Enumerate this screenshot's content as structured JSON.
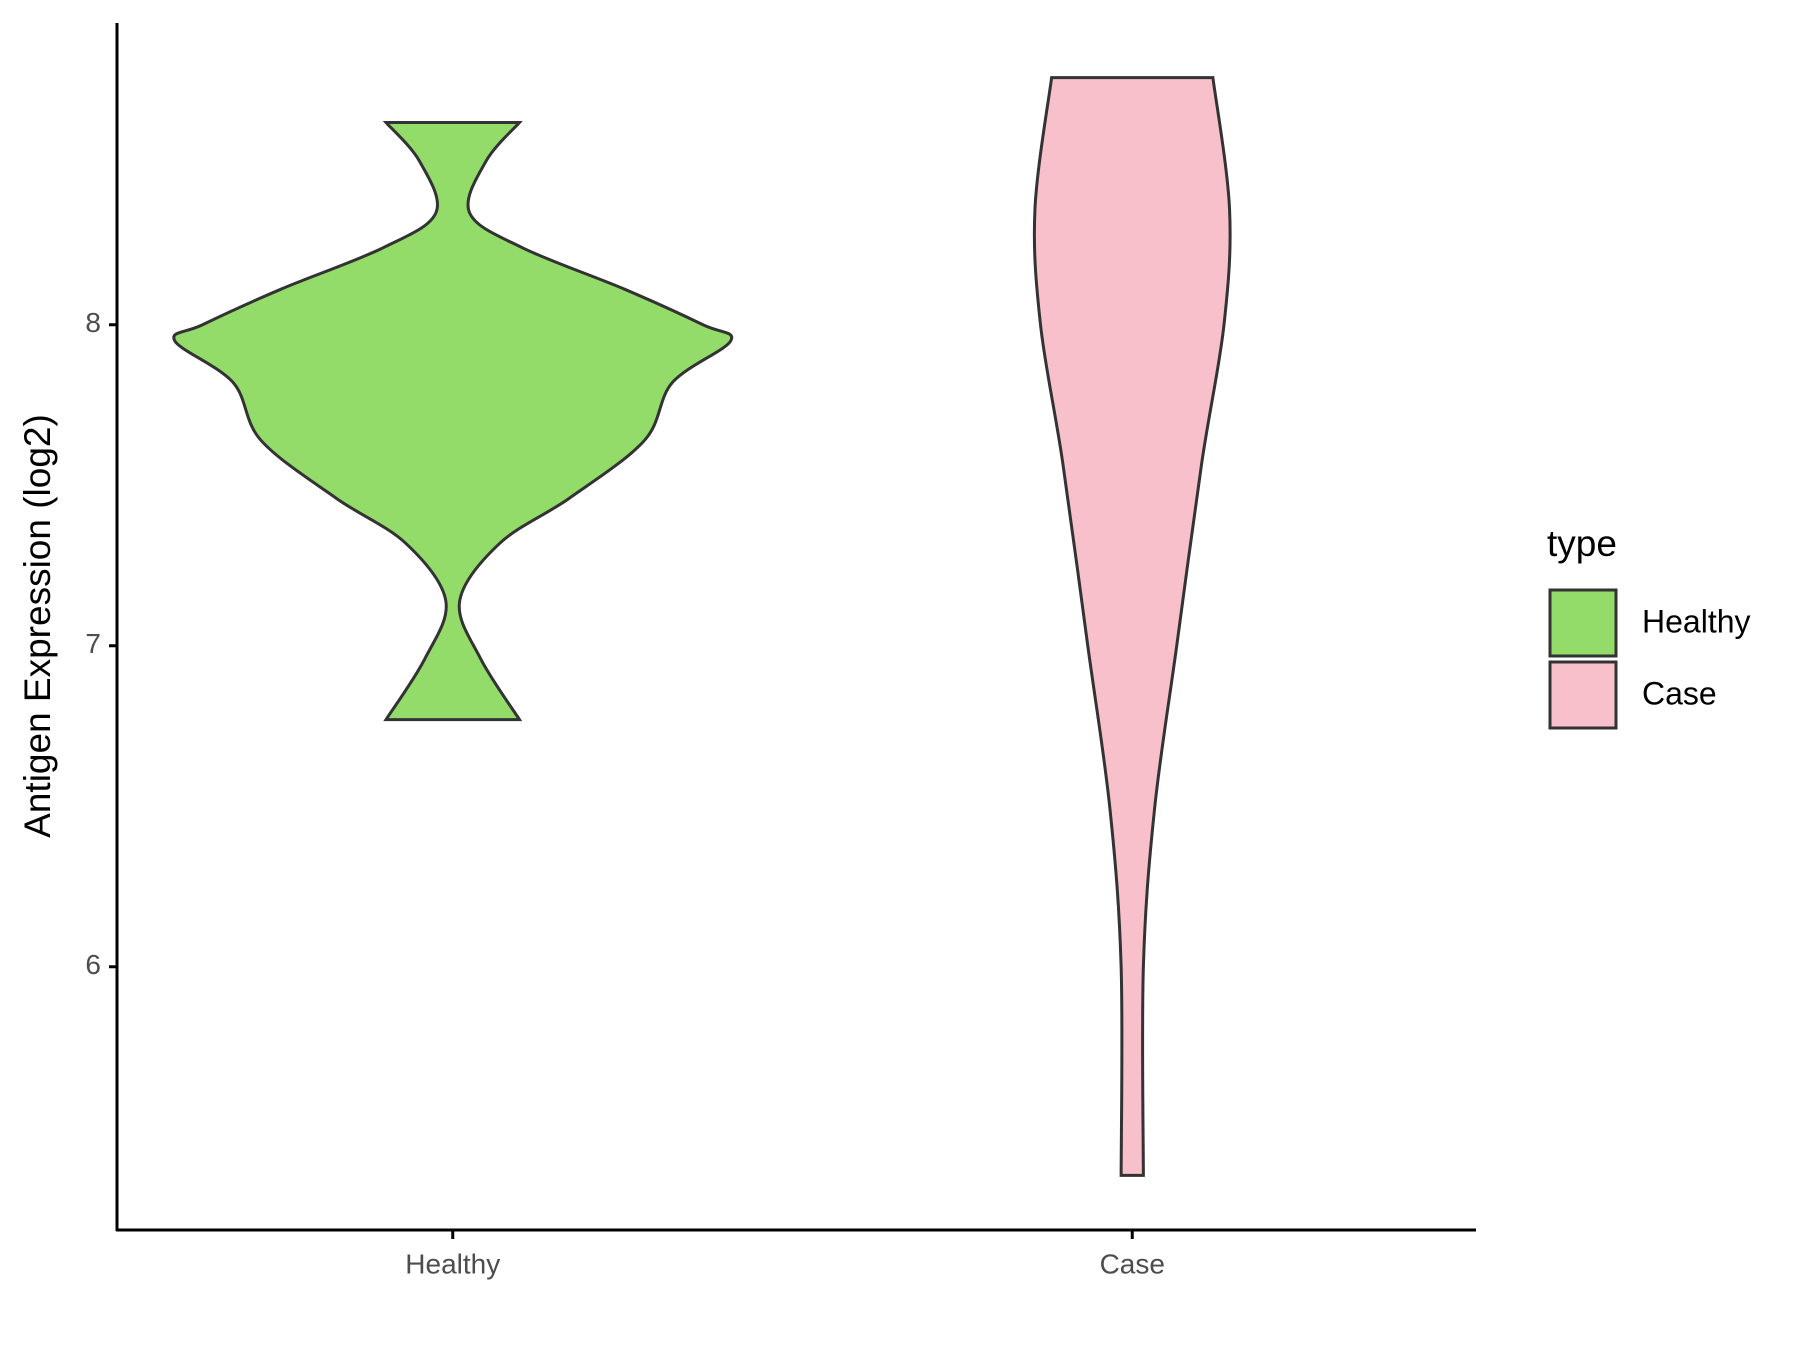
{
  "chart_data": {
    "type": "violin",
    "y_label": "Antigen Expression (log2)",
    "legend_title": "type",
    "categories": [
      "Healthy",
      "Case"
    ],
    "ylim": [
      5.18,
      8.94
    ],
    "yticks": [
      6,
      7,
      8
    ],
    "series": [
      {
        "name": "Healthy",
        "color": "#93dc6a",
        "y": [
          8.63,
          8.51,
          8.35,
          8.24,
          8.11,
          8.0,
          7.95,
          7.82,
          7.64,
          7.46,
          7.32,
          7.14,
          6.96,
          6.77
        ],
        "density": [
          0.24,
          0.12,
          0.06,
          0.25,
          0.62,
          0.9,
          1.0,
          0.79,
          0.69,
          0.42,
          0.17,
          0.025,
          0.1,
          0.24
        ]
      },
      {
        "name": "Case",
        "color": "#f7c0cb",
        "y": [
          8.77,
          8.36,
          8.0,
          7.57,
          7.0,
          6.49,
          6.0,
          5.35
        ],
        "density": [
          0.29,
          0.35,
          0.33,
          0.25,
          0.16,
          0.08,
          0.04,
          0.04
        ]
      }
    ]
  }
}
